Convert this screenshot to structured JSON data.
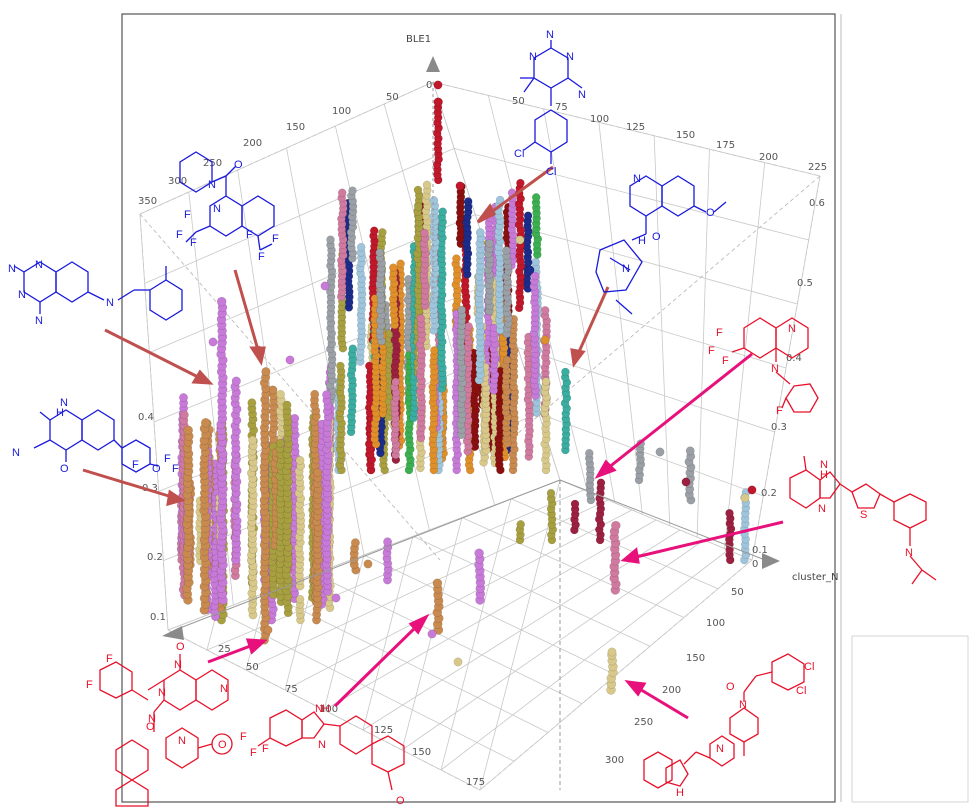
{
  "chart_data": {
    "type": "scatter",
    "axes": {
      "z": {
        "label": "BLE1",
        "ticks": [
          "0.1",
          "0.2",
          "0.3",
          "0.4",
          "0.5",
          "0.6"
        ],
        "ticks_left": [
          "0.1",
          "0.2",
          "0.3",
          "0.4"
        ]
      },
      "y": {
        "label": "cluster_N",
        "ticks": [
          "0",
          "50",
          "100",
          "150",
          "200",
          "250",
          "300"
        ]
      },
      "x": {
        "label": "",
        "ticks": [
          "25",
          "50",
          "75",
          "100",
          "125",
          "150",
          "175"
        ]
      },
      "back_top": {
        "ticks": [
          "0",
          "50",
          "75",
          "100",
          "125",
          "150",
          "175",
          "200",
          "225"
        ]
      },
      "left_top": {
        "ticks": [
          "50",
          "100",
          "150",
          "200",
          "250",
          "300",
          "350"
        ]
      }
    },
    "colors": {
      "tan": "#c98a50",
      "khaki": "#d8c98a",
      "violet": "#c77ad8",
      "lightblue": "#9fc5dc",
      "teal": "#3aaea0",
      "maroon": "#9c2040",
      "red": "#c0182a",
      "gray": "#9aa0a6",
      "pink": "#d07aa0",
      "olive": "#a8a040",
      "green": "#3cb050",
      "orange": "#e0902a",
      "darkred": "#8a1010",
      "navy": "#1c2c8a"
    },
    "annotation_colors": {
      "inactive": "#1a1adc",
      "active": "#e8102a",
      "arrow_a": "#c0504d",
      "arrow_b": "#e8107a"
    }
  },
  "molecule_labels": {
    "m1": {
      "a": "N",
      "b": "N",
      "c": "N",
      "d": "N",
      "cl1": "Cl",
      "cl2": "Cl"
    },
    "m2": {
      "o": "O",
      "n": "N",
      "f1": "F",
      "f2": "F",
      "f3": "F",
      "f4": "F",
      "f5": "F",
      "f6": "F",
      "nq": "N"
    },
    "m3": {
      "a": "N",
      "b": "N",
      "c": "N",
      "d": "N",
      "e": "N",
      "nh": "N"
    },
    "m4": {
      "nq": "N",
      "o1": "O",
      "o2": "O",
      "h": "H",
      "nb": "N"
    },
    "m5": {
      "h": "H",
      "n": "N",
      "nc": "N",
      "o": "O",
      "o2": "O",
      "f1": "F",
      "f2": "F",
      "f3": "F"
    },
    "m6": {
      "n": "N",
      "n2": "N",
      "f1": "F",
      "f2": "F",
      "f3": "F",
      "f": "F"
    },
    "m7": {
      "h": "H",
      "n": "N",
      "n2": "N",
      "s": "S",
      "n3": "N"
    },
    "m8": {
      "f1": "F",
      "f2": "F",
      "n1": "N",
      "n2": "N",
      "o": "O",
      "n3": "N",
      "o2": "O",
      "n4": "N",
      "n5": "N",
      "o3": "O"
    },
    "m9": {
      "h": "H",
      "n": "N",
      "n2": "N",
      "f1": "F",
      "f2": "F",
      "f3": "F",
      "o": "O"
    },
    "m10": {
      "o": "O",
      "n": "N",
      "n2": "N",
      "h": "H",
      "cl1": "Cl",
      "cl2": "Cl"
    }
  }
}
